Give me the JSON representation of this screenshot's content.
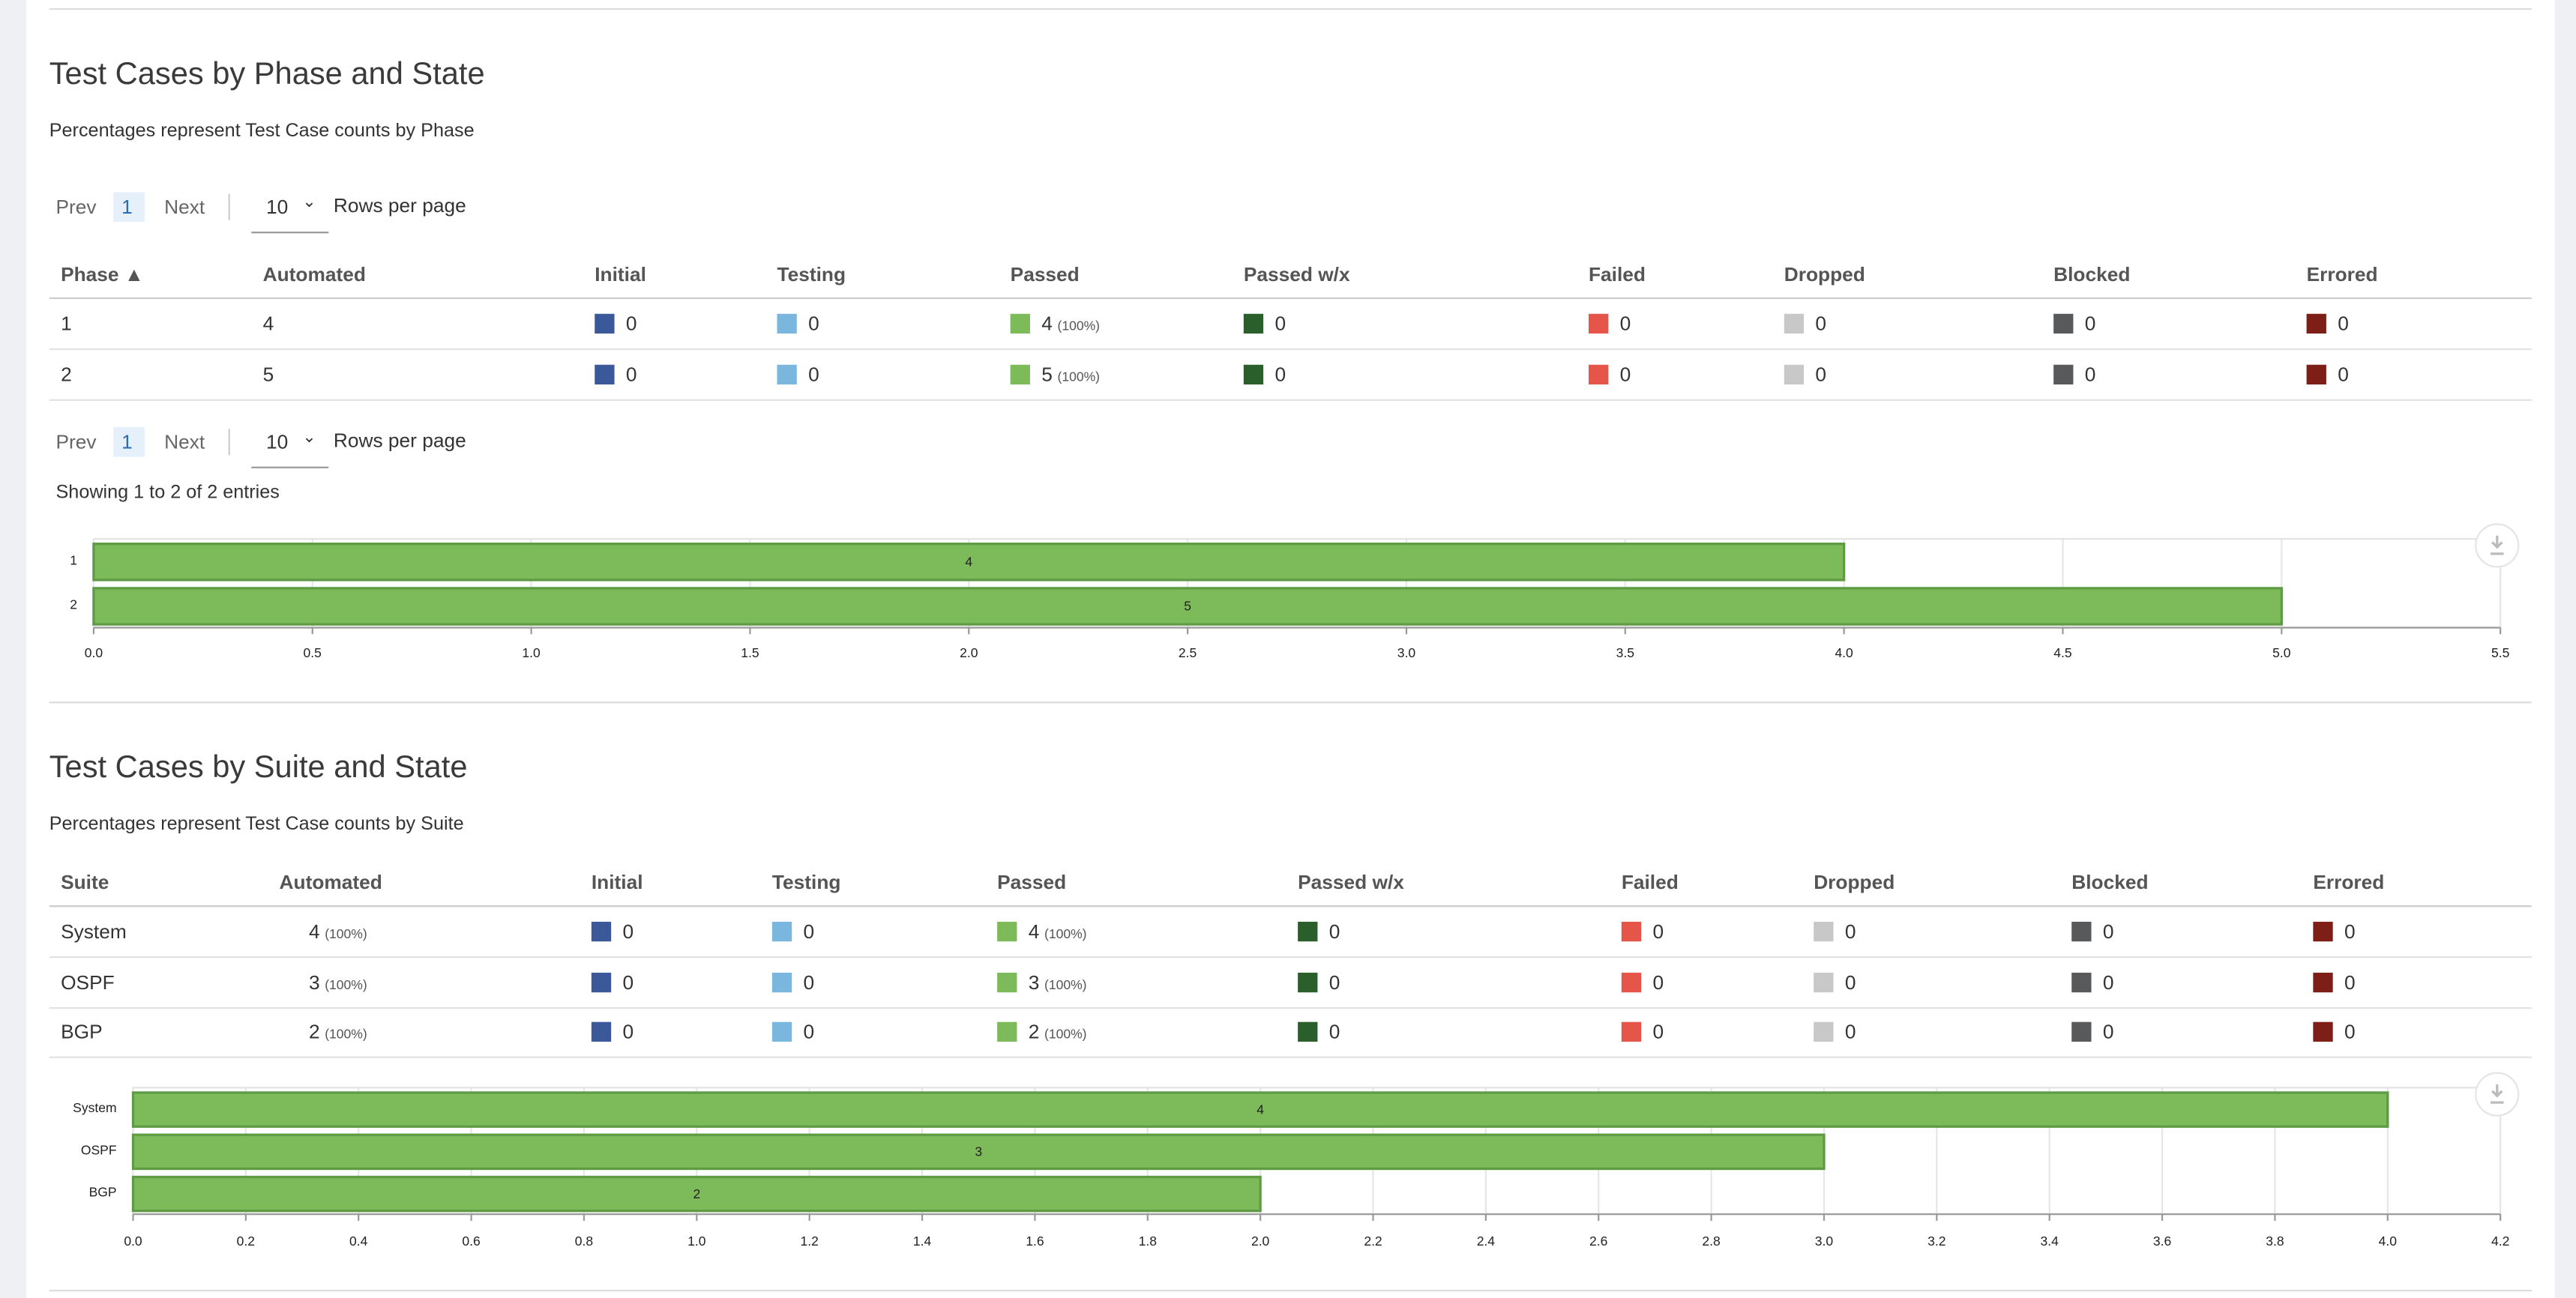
{
  "sections": [
    {
      "title": "Test Cases by Phase and State",
      "subtitle": "Percentages represent Test Case counts by Phase",
      "pager": {
        "prev": "Prev",
        "page": "1",
        "next": "Next",
        "rows": "10",
        "rows_label": "Rows per page"
      },
      "table": {
        "columns": [
          {
            "name": "Phase ▲"
          },
          {
            "name": "Automated"
          },
          {
            "name": "Initial",
            "color": "#3b5998"
          },
          {
            "name": "Testing",
            "color": "#7ab6de"
          },
          {
            "name": "Passed",
            "color": "#7dba5a"
          },
          {
            "name": "Passed w/x",
            "color": "#2a5e2a"
          },
          {
            "name": "Failed",
            "color": "#e5554a"
          },
          {
            "name": "Dropped",
            "color": "#c8c8c8"
          },
          {
            "name": "Blocked",
            "color": "#58595b"
          },
          {
            "name": "Errored",
            "color": "#7d1e17"
          }
        ],
        "rows": [
          [
            1,
            4,
            0,
            0,
            {
              "text": 4,
              "note": "(100%)"
            },
            0,
            0,
            0,
            0,
            0
          ],
          [
            2,
            5,
            0,
            0,
            {
              "text": 5,
              "note": "(100%)"
            },
            0,
            0,
            0,
            0,
            0
          ]
        ]
      },
      "footer": "Showing 1 to 2 of 2 entries",
      "chart": {
        "type": "bar",
        "orientation": "horizontal",
        "categories": [
          "1",
          "2"
        ],
        "values": [
          4,
          5
        ],
        "color": "#7dba5a",
        "xlim": [
          0,
          5.5
        ],
        "xticks": [
          {
            "value": 0,
            "label": "0.0"
          },
          0.5,
          {
            "value": 1,
            "label": "1.0"
          },
          1.5,
          {
            "value": 2,
            "label": "2.0"
          },
          2.5,
          {
            "value": 3,
            "label": "3.0"
          },
          3.5,
          {
            "value": 4,
            "label": "4.0"
          },
          4.5,
          {
            "value": 5,
            "label": "5.0"
          },
          5.5
        ],
        "grid": true
      }
    },
    {
      "title": "Test Cases by Suite and State",
      "subtitle": "Percentages represent Test Case counts by Suite",
      "table": {
        "columns": [
          {
            "name": "Suite"
          },
          {
            "name": "Automated"
          },
          {
            "name": "Initial",
            "color": "#3b5998"
          },
          {
            "name": "Testing",
            "color": "#7ab6de"
          },
          {
            "name": "Passed",
            "color": "#7dba5a"
          },
          {
            "name": "Passed w/x",
            "color": "#2a5e2a"
          },
          {
            "name": "Failed",
            "color": "#e5554a"
          },
          {
            "name": "Dropped",
            "color": "#c8c8c8"
          },
          {
            "name": "Blocked",
            "color": "#58595b"
          },
          {
            "name": "Errored",
            "color": "#7d1e17"
          }
        ],
        "rows": [
          [
            "System",
            {
              "text": 4,
              "note": "(100%)"
            },
            0,
            0,
            {
              "text": 4,
              "note": "(100%)"
            },
            0,
            0,
            0,
            0,
            0
          ],
          [
            "OSPF",
            {
              "text": 3,
              "note": "(100%)"
            },
            0,
            0,
            {
              "text": 3,
              "note": "(100%)"
            },
            0,
            0,
            0,
            0,
            0
          ],
          [
            "BGP",
            {
              "text": 2,
              "note": "(100%)"
            },
            0,
            0,
            {
              "text": 2,
              "note": "(100%)"
            },
            0,
            0,
            0,
            0,
            0
          ]
        ]
      },
      "chart": {
        "type": "bar",
        "orientation": "horizontal",
        "categories": [
          "System",
          "OSPF",
          "BGP"
        ],
        "values": [
          4,
          3,
          2
        ],
        "color": "#7dba5a",
        "xlim": [
          0,
          4.2
        ],
        "xticks": [
          {
            "value": 0,
            "label": "0.0"
          },
          0.2,
          0.4,
          0.6,
          0.8,
          {
            "value": 1,
            "label": "1.0"
          },
          1.2,
          1.4,
          1.6,
          1.8,
          {
            "value": 2,
            "label": "2.0"
          },
          2.2,
          2.4,
          2.6,
          2.8,
          {
            "value": 3,
            "label": "3.0"
          },
          3.2,
          3.4,
          3.6,
          3.8,
          {
            "value": 4,
            "label": "4.0"
          },
          4.2
        ],
        "grid": true
      }
    }
  ]
}
